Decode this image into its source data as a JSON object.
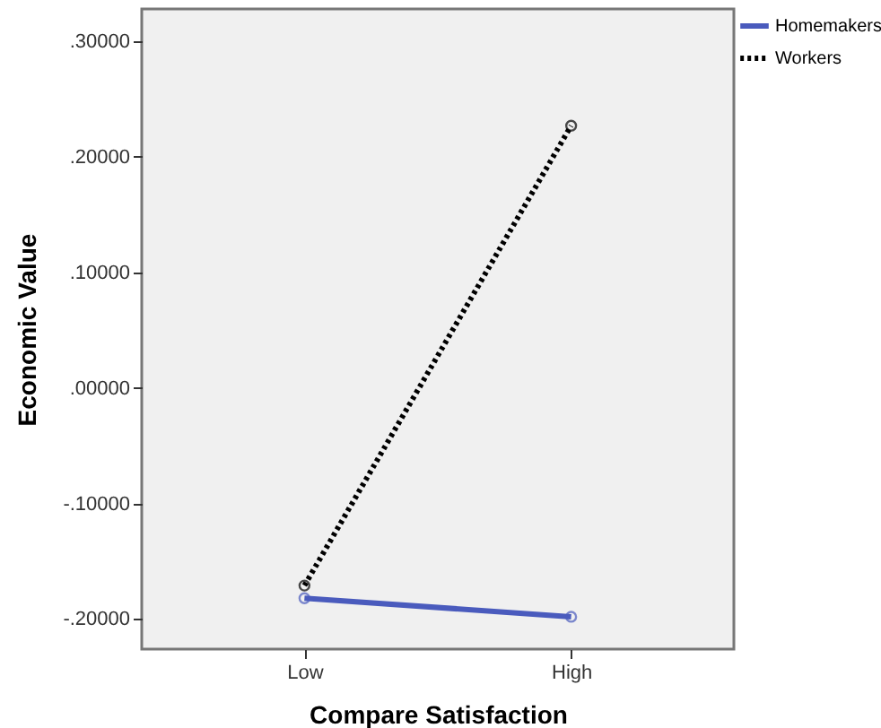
{
  "chart_data": {
    "type": "line",
    "xlabel": "Compare Satisfaction",
    "ylabel": "Economic Value",
    "categories": [
      "Low",
      "High"
    ],
    "series": [
      {
        "name": "Homemakers",
        "color": "#4a5bbd",
        "line_style": "solid",
        "values": [
          -0.182,
          -0.198
        ]
      },
      {
        "name": "Workers",
        "color": "#000000",
        "line_style": "dotted",
        "values": [
          -0.171,
          0.227
        ]
      }
    ],
    "ylim": [
      -0.226,
      0.328
    ],
    "yticks": [
      {
        "value": -0.2,
        "label": "-.20000"
      },
      {
        "value": -0.1,
        "label": "-.10000"
      },
      {
        "value": 0,
        "label": ".00000"
      },
      {
        "value": 0.1,
        "label": ".10000"
      },
      {
        "value": 0.2,
        "label": ".20000"
      },
      {
        "value": 0.3,
        "label": ".30000"
      }
    ],
    "marker": "circle",
    "grid": false,
    "legend": "top right"
  }
}
